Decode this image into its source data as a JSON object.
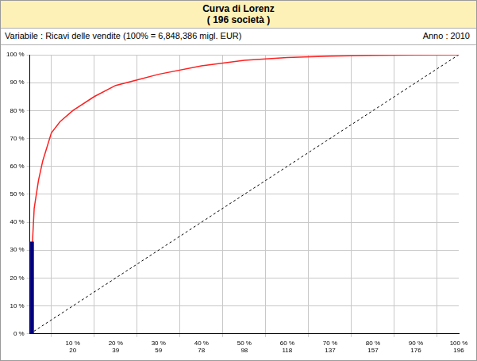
{
  "chart_data": {
    "type": "line",
    "title": "Curva di Lorenz",
    "subtitle": "( 196 società )",
    "annotations": [
      "Variabile : Ricavi delle vendite (100% = 6,848,386 migl. EUR)",
      "Anno : 2010"
    ],
    "xlim": [
      0,
      100
    ],
    "ylim": [
      0,
      100
    ],
    "xticks": [
      {
        "value": 10,
        "label": "10 %\n20"
      },
      {
        "value": 20,
        "label": "20 %\n39"
      },
      {
        "value": 30,
        "label": "30 %\n59"
      },
      {
        "value": 40,
        "label": "40 %\n78"
      },
      {
        "value": 50,
        "label": "50 %\n98"
      },
      {
        "value": 60,
        "label": "60 %\n118"
      },
      {
        "value": 70,
        "label": "70 %\n137"
      },
      {
        "value": 80,
        "label": "80 %\n157"
      },
      {
        "value": 90,
        "label": "90 %\n176"
      },
      {
        "value": 100,
        "label": "100 %\n196"
      }
    ],
    "yticks": [
      {
        "value": 0,
        "label": "0 %"
      },
      {
        "value": 10,
        "label": "10 %"
      },
      {
        "value": 20,
        "label": "20 %"
      },
      {
        "value": 30,
        "label": "30 %"
      },
      {
        "value": 40,
        "label": "40 %"
      },
      {
        "value": 50,
        "label": "50 %"
      },
      {
        "value": 60,
        "label": "60 %"
      },
      {
        "value": 70,
        "label": "70 %"
      },
      {
        "value": 80,
        "label": "80 %"
      },
      {
        "value": 90,
        "label": "90 %"
      },
      {
        "value": 100,
        "label": "100 %"
      }
    ],
    "grid": true,
    "series": [
      {
        "type": "line",
        "color": "#ff2020",
        "line_style": "solid",
        "x": [
          0.5,
          1,
          2,
          3,
          5,
          7,
          10,
          15,
          20,
          25,
          30,
          40,
          50,
          60,
          70,
          80,
          90,
          100
        ],
        "values": [
          30,
          45,
          55,
          62,
          72,
          76,
          80,
          85,
          89,
          91,
          93,
          96,
          98,
          99,
          99.5,
          99.8,
          99.9,
          100
        ]
      },
      {
        "type": "line",
        "color": "#000000",
        "line_style": "dashed",
        "x": [
          0,
          100
        ],
        "values": [
          0,
          100
        ]
      },
      {
        "type": "bar",
        "color": "#000080",
        "x": [
          0.5
        ],
        "values": [
          33
        ]
      }
    ]
  }
}
